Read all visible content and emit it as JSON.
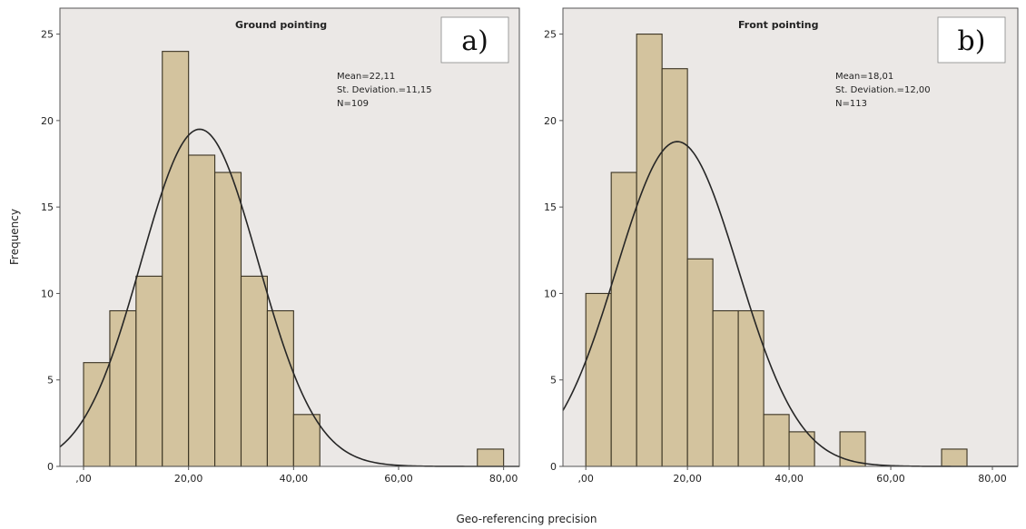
{
  "figure": {
    "ylabel": "Frequency",
    "xlabel": "Geo-referencing precision"
  },
  "colors": {
    "plot_bg": "#ebe8e6",
    "bar_fill": "#d3c39e",
    "bar_stroke": "#3a3322",
    "curve": "#262626",
    "frame": "#555555"
  },
  "chart_data": [
    {
      "type": "bar",
      "title": "Ground pointing",
      "panel_label": "a)",
      "stats": [
        "Mean=22,11",
        "St. Deviation.=11,15",
        "N=109"
      ],
      "mean": 22.11,
      "sd": 11.15,
      "n": 109,
      "bin_width": 5,
      "bins": [
        {
          "start": 0,
          "end": 5,
          "count": 6
        },
        {
          "start": 5,
          "end": 10,
          "count": 9
        },
        {
          "start": 10,
          "end": 15,
          "count": 11
        },
        {
          "start": 15,
          "end": 20,
          "count": 24
        },
        {
          "start": 20,
          "end": 25,
          "count": 18
        },
        {
          "start": 25,
          "end": 30,
          "count": 17
        },
        {
          "start": 30,
          "end": 35,
          "count": 11
        },
        {
          "start": 35,
          "end": 40,
          "count": 9
        },
        {
          "start": 40,
          "end": 45,
          "count": 3
        },
        {
          "start": 75,
          "end": 80,
          "count": 1
        }
      ],
      "xlim": [
        -4.5,
        83
      ],
      "ylim": [
        0,
        26.5
      ],
      "xticks": [
        0,
        20,
        40,
        60,
        80
      ],
      "xtick_labels": [
        ",00",
        "20,00",
        "40,00",
        "60,00",
        "80,00"
      ],
      "yticks": [
        0,
        5,
        10,
        15,
        20,
        25
      ],
      "ytick_labels": [
        "0",
        "5",
        "10",
        "15",
        "20",
        "25"
      ]
    },
    {
      "type": "bar",
      "title": "Front pointing",
      "panel_label": "b)",
      "stats": [
        "Mean=18,01",
        "St. Deviation.=12,00",
        "N=113"
      ],
      "mean": 18.01,
      "sd": 12.0,
      "n": 113,
      "bin_width": 5,
      "bins": [
        {
          "start": 0,
          "end": 5,
          "count": 10
        },
        {
          "start": 5,
          "end": 10,
          "count": 17
        },
        {
          "start": 10,
          "end": 15,
          "count": 25
        },
        {
          "start": 15,
          "end": 20,
          "count": 23
        },
        {
          "start": 20,
          "end": 25,
          "count": 12
        },
        {
          "start": 25,
          "end": 30,
          "count": 9
        },
        {
          "start": 30,
          "end": 35,
          "count": 9
        },
        {
          "start": 35,
          "end": 40,
          "count": 3
        },
        {
          "start": 40,
          "end": 45,
          "count": 2
        },
        {
          "start": 50,
          "end": 55,
          "count": 2
        },
        {
          "start": 70,
          "end": 75,
          "count": 1
        }
      ],
      "xlim": [
        -4.5,
        85
      ],
      "ylim": [
        0,
        26.5
      ],
      "xticks": [
        0,
        20,
        40,
        60,
        80
      ],
      "xtick_labels": [
        ",00",
        "20,00",
        "40,00",
        "60,00",
        "80,00"
      ],
      "yticks": [
        0,
        5,
        10,
        15,
        20,
        25
      ],
      "ytick_labels": [
        "0",
        "5",
        "10",
        "15",
        "20",
        "25"
      ]
    }
  ]
}
